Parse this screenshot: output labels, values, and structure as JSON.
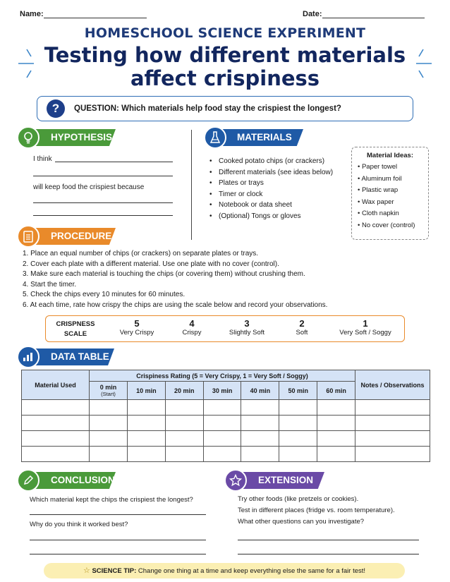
{
  "header": {
    "name_label": "Name:",
    "date_label": "Date:"
  },
  "kicker": "HOMESCHOOL SCIENCE EXPERIMENT",
  "title_line1": "Testing how different materials",
  "title_line2": "affect crispiness",
  "question": {
    "icon": "?",
    "text": "QUESTION: Which materials help food stay the crispiest the longest?"
  },
  "hypothesis": {
    "heading": "HYPOTHESIS",
    "icon": "lightbulb-icon",
    "line1": "I think",
    "line2": "will keep food the crispiest because"
  },
  "materials": {
    "heading": "MATERIALS",
    "icon": "flask-icon",
    "items": [
      "Cooked potato chips (or crackers)",
      "Different materials (see ideas below)",
      "Plates or trays",
      "Timer or clock",
      "Notebook or data sheet",
      "(Optional) Tongs or gloves"
    ],
    "ideas_heading": "Material Ideas:",
    "ideas": [
      "• Paper towel",
      "• Aluminum foil",
      "• Plastic wrap",
      "• Wax paper",
      "• Cloth napkin",
      "• No cover (control)"
    ]
  },
  "procedure": {
    "heading": "PROCEDURE",
    "icon": "clipboard-icon",
    "steps": [
      "1.  Place an equal number of chips (or crackers) on separate plates or trays.",
      "2.  Cover each plate with a different material. Use one plate with no cover (control).",
      "3.  Make sure each material is touching the chips (or covering them) without crushing them.",
      "4.  Start the timer.",
      "5.  Check the chips every 10 minutes for 60 minutes.",
      "6.  At each time, rate how crispy the chips are using the scale below and record your observations."
    ]
  },
  "scale": {
    "label1": "CRISPNESS",
    "label2": "SCALE",
    "levels": [
      {
        "num": "5",
        "label": "Very Crispy"
      },
      {
        "num": "4",
        "label": "Crispy"
      },
      {
        "num": "3",
        "label": "Slightly Soft"
      },
      {
        "num": "2",
        "label": "Soft"
      },
      {
        "num": "1",
        "label": "Very Soft / Soggy"
      }
    ]
  },
  "data_table": {
    "heading": "DATA TABLE",
    "icon": "bar-chart-icon",
    "col_material": "Material Used",
    "rating_header": "Crispiness Rating (5 = Very Crispy, 1 = Very Soft / Soggy)",
    "time_cols": [
      "0 min",
      "10 min",
      "20 min",
      "30 min",
      "40 min",
      "50 min",
      "60 min"
    ],
    "start_note": "(Start)",
    "notes_header": "Notes / Observations",
    "empty_rows": 4
  },
  "conclusion": {
    "heading": "CONCLUSION",
    "icon": "pencil-icon",
    "q1": "Which material kept the chips the crispiest the longest?",
    "q2": "Why do you think it worked best?"
  },
  "extension": {
    "heading": "EXTENSION",
    "icon": "star-icon",
    "lines": [
      "Try other foods (like pretzels or cookies).",
      "Test in different places (fridge vs. room temperature).",
      "What other questions can you investigate?"
    ]
  },
  "tip": {
    "icon": "☆",
    "label": "SCIENCE TIP:",
    "text": "Change one thing at a time and keep everything else the same for a fair test!"
  },
  "colors": {
    "navy": "#12265e",
    "green": "#4a9a3a",
    "blue": "#1f5aa6",
    "orange": "#e98a2a",
    "purple": "#6a4aa6",
    "table_header": "#d5e3f6",
    "tip_bg": "#fbefb3"
  }
}
